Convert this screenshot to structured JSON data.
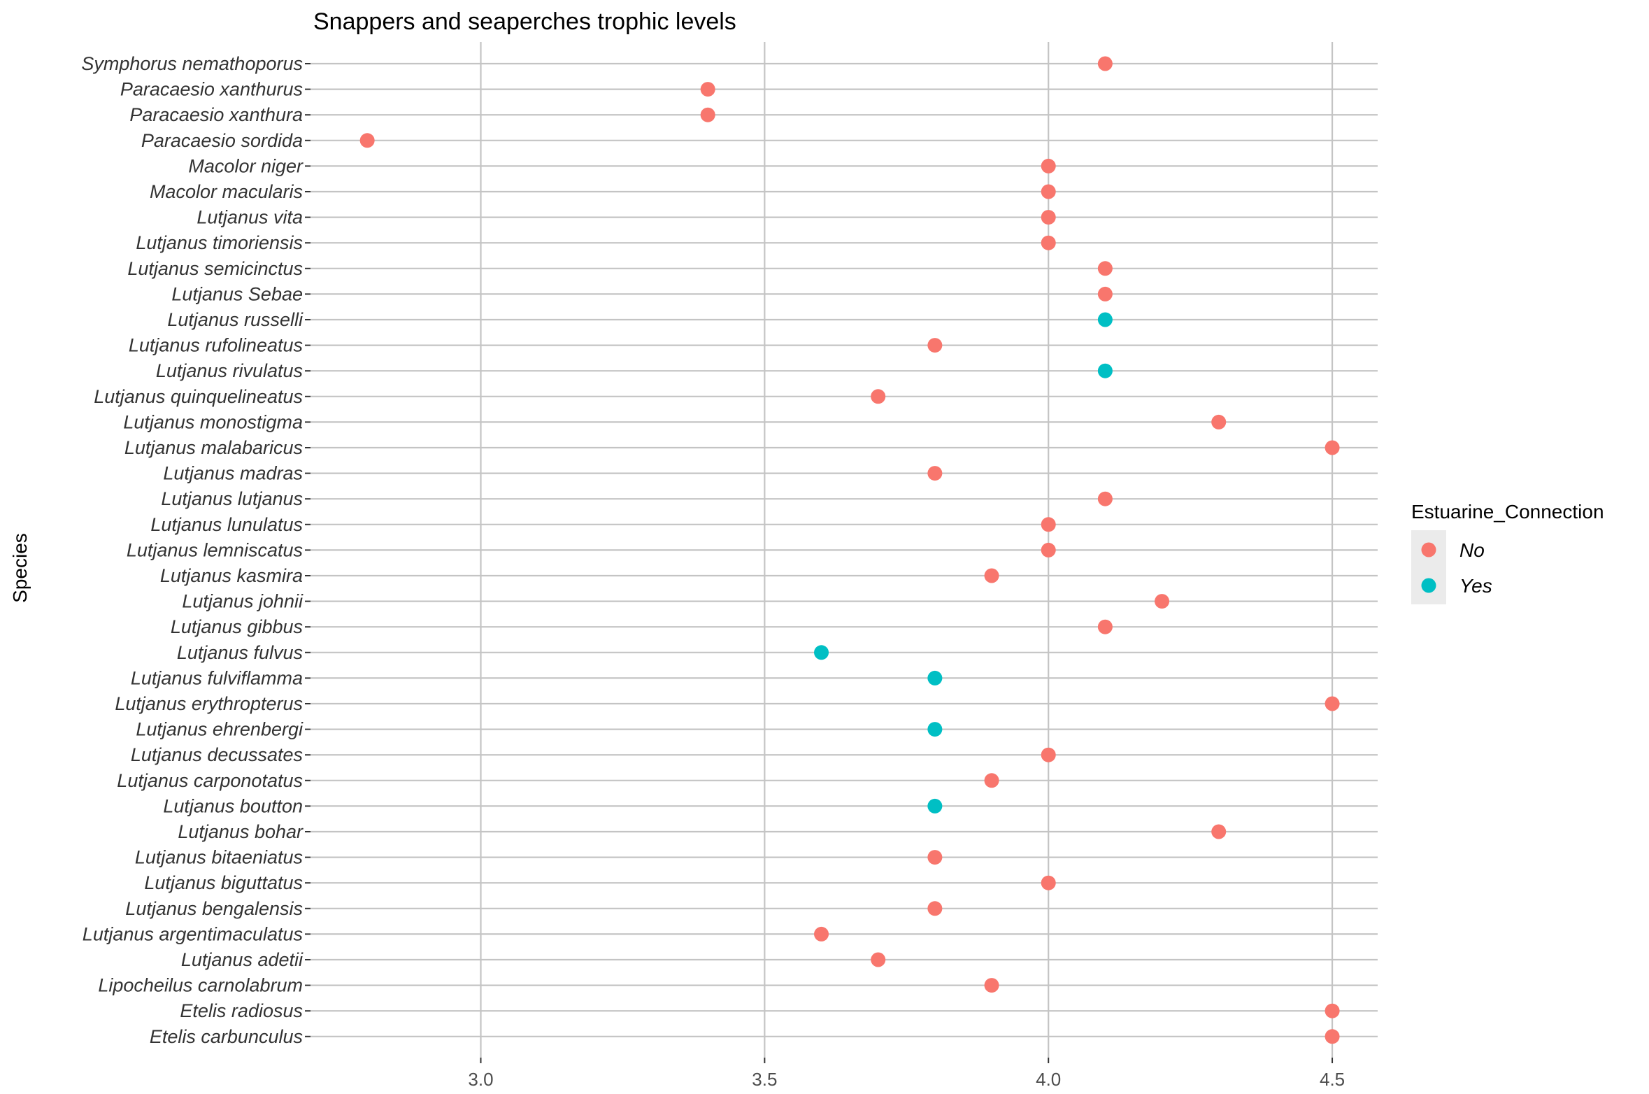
{
  "chart_data": {
    "type": "scatter",
    "title": "Snappers and seaperches trophic levels",
    "xlabel": "",
    "ylabel": "Species",
    "xlim": [
      2.7,
      4.58
    ],
    "xticks": [
      "3.0",
      "3.5",
      "4.0",
      "4.5"
    ],
    "grid": true,
    "legend": {
      "title": "Estuarine_Connection",
      "position": "right",
      "entries": [
        {
          "label": "No",
          "color": "#F8766D"
        },
        {
          "label": "Yes",
          "color": "#00BFC4"
        }
      ]
    },
    "categories": [
      "Symphorus nemathoporus",
      "Paracaesio xanthurus",
      "Paracaesio xanthura",
      "Paracaesio sordida",
      "Macolor  niger",
      "Macolor  macularis",
      "Lutjanus vita",
      "Lutjanus timoriensis",
      "Lutjanus semicinctus",
      "Lutjanus Sebae",
      "Lutjanus russelli",
      "Lutjanus rufolineatus",
      "Lutjanus rivulatus",
      "Lutjanus quinquelineatus",
      "Lutjanus monostigma",
      "Lutjanus malabaricus",
      "Lutjanus madras",
      "Lutjanus lutjanus",
      "Lutjanus lunulatus",
      "Lutjanus lemniscatus",
      "Lutjanus kasmira",
      "Lutjanus johnii",
      "Lutjanus gibbus",
      "Lutjanus fulvus",
      "Lutjanus fulviflamma",
      "Lutjanus erythropterus",
      "Lutjanus ehrenbergi",
      "Lutjanus decussates",
      "Lutjanus carponotatus",
      "Lutjanus boutton",
      "Lutjanus bohar",
      "Lutjanus bitaeniatus",
      "Lutjanus biguttatus",
      "Lutjanus bengalensis",
      "Lutjanus argentimaculatus",
      "Lutjanus adetii",
      "Lipocheilus carnolabrum",
      "Etelis radiosus",
      "Etelis carbunculus"
    ],
    "values": [
      4.1,
      3.4,
      3.4,
      2.8,
      4.0,
      4.0,
      4.0,
      4.0,
      4.1,
      4.1,
      4.1,
      3.8,
      4.1,
      3.7,
      4.3,
      4.5,
      3.8,
      4.1,
      4.0,
      4.0,
      3.9,
      4.2,
      4.1,
      3.6,
      3.8,
      4.5,
      3.8,
      4.0,
      3.9,
      3.8,
      4.3,
      3.8,
      4.0,
      3.8,
      3.6,
      3.7,
      3.9,
      4.5,
      4.5
    ],
    "group": [
      "No",
      "No",
      "No",
      "No",
      "No",
      "No",
      "No",
      "No",
      "No",
      "No",
      "Yes",
      "No",
      "Yes",
      "No",
      "No",
      "No",
      "No",
      "No",
      "No",
      "No",
      "No",
      "No",
      "No",
      "Yes",
      "Yes",
      "No",
      "Yes",
      "No",
      "No",
      "Yes",
      "No",
      "No",
      "No",
      "No",
      "No",
      "No",
      "No",
      "No",
      "No"
    ]
  }
}
